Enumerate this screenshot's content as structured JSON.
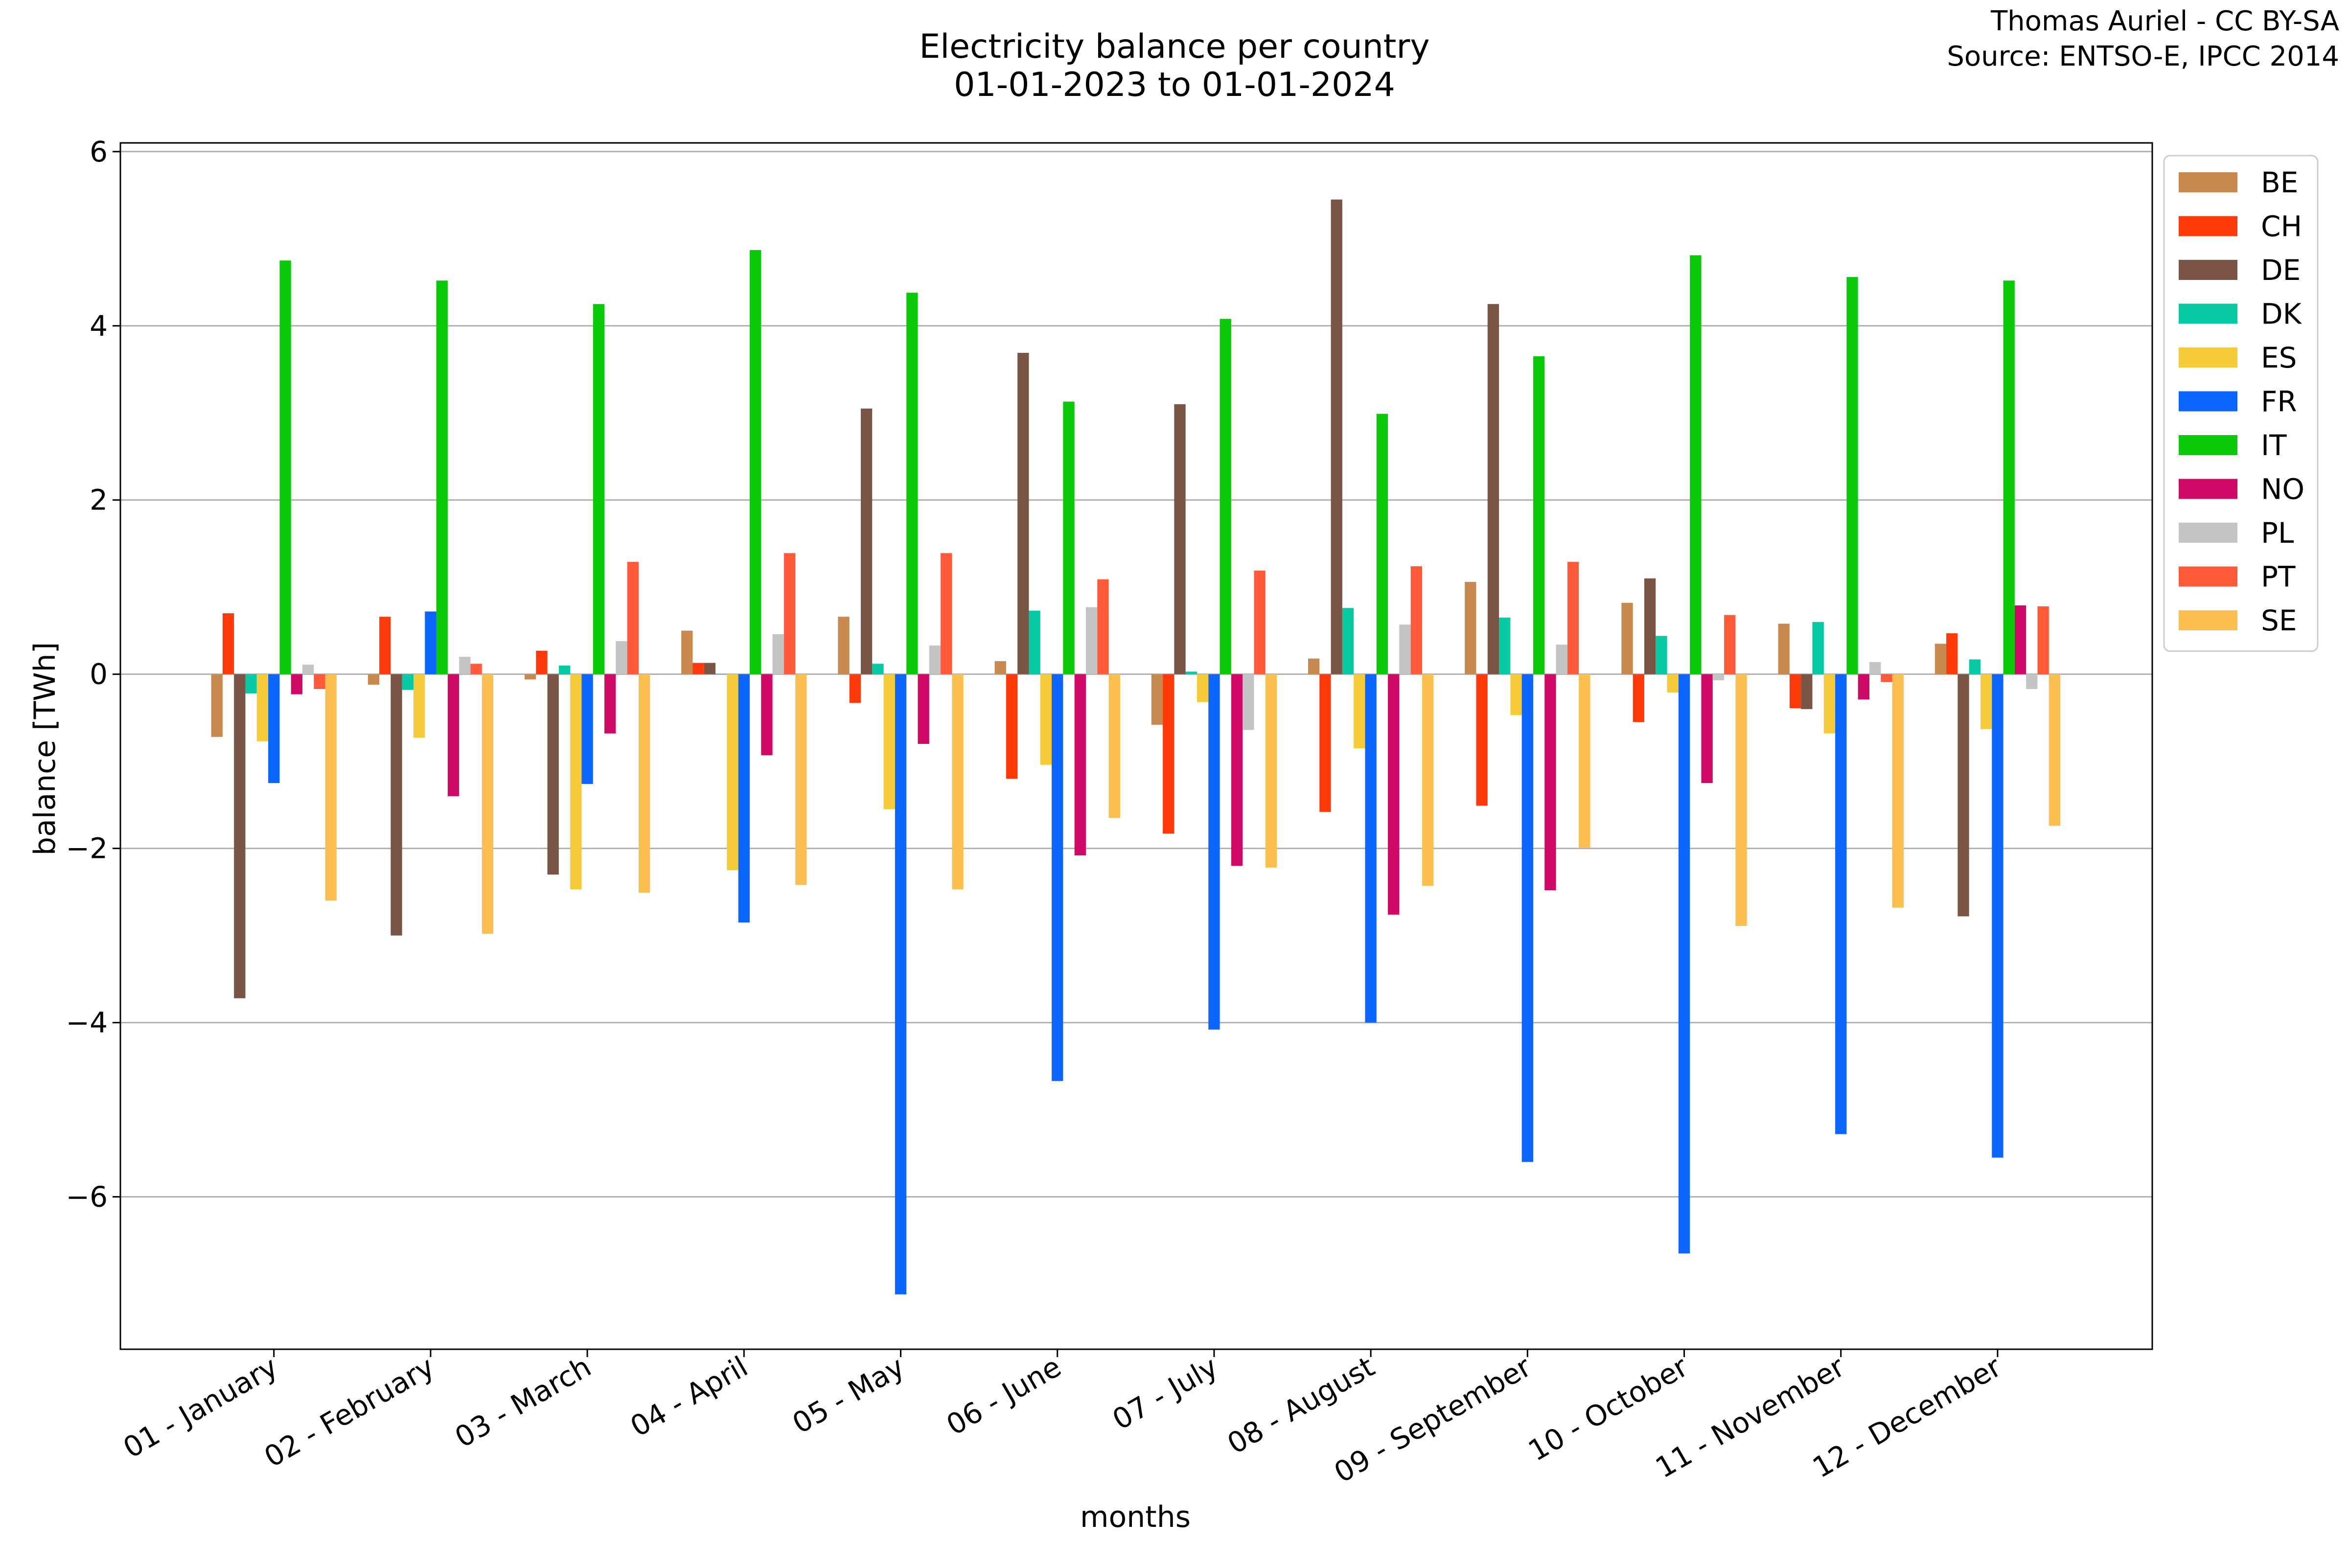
{
  "chart_data": {
    "type": "bar",
    "title": "Electricity balance per country",
    "subtitle": "01-01-2023 to 01-01-2024",
    "credit_line1": "Thomas Auriel - CC BY-SA",
    "credit_line2": "Source: ENTSO-E, IPCC 2014",
    "xlabel": "months",
    "ylabel": "balance [TWh]",
    "ylim": [
      -7.75,
      6.1
    ],
    "yticks": [
      6,
      4,
      2,
      0,
      -2,
      -4,
      -6
    ],
    "ytick_labels": [
      "6",
      "4",
      "2",
      "0",
      "−2",
      "−4",
      "−6"
    ],
    "grid": "horizontal",
    "legend_position": "top-right",
    "categories": [
      "01 - January",
      "02 - February",
      "03 - March",
      "04 - April",
      "05 - May",
      "06 - June",
      "07 - July",
      "08 - August",
      "09 - September",
      "10 - October",
      "11 - November",
      "12 - December"
    ],
    "series": [
      {
        "name": "BE",
        "color": "#c8894f",
        "values": [
          -0.72,
          -0.12,
          -0.06,
          0.5,
          0.66,
          0.15,
          -0.58,
          0.18,
          1.06,
          0.82,
          0.58,
          0.35
        ]
      },
      {
        "name": "CH",
        "color": "#ff3a0a",
        "values": [
          0.7,
          0.66,
          0.27,
          0.13,
          -0.33,
          -1.2,
          -1.83,
          -1.58,
          -1.51,
          -0.55,
          -0.39,
          0.47
        ]
      },
      {
        "name": "DE",
        "color": "#7a5444",
        "values": [
          -3.72,
          -3.0,
          -2.3,
          0.13,
          3.05,
          3.69,
          3.1,
          5.45,
          4.25,
          1.1,
          -0.4,
          -2.78
        ]
      },
      {
        "name": "DK",
        "color": "#07c9a4",
        "values": [
          -0.22,
          -0.18,
          0.1,
          0.0,
          0.12,
          0.73,
          0.03,
          0.76,
          0.65,
          0.44,
          0.6,
          0.17
        ]
      },
      {
        "name": "ES",
        "color": "#f5cb3a",
        "values": [
          -0.77,
          -0.73,
          -2.47,
          -2.25,
          -1.55,
          -1.04,
          -0.32,
          -0.85,
          -0.47,
          -0.21,
          -0.68,
          -0.63
        ]
      },
      {
        "name": "FR",
        "color": "#0a66ff",
        "values": [
          -1.25,
          0.72,
          -1.26,
          -2.85,
          -7.12,
          -4.67,
          -4.08,
          -4.0,
          -5.6,
          -6.65,
          -5.28,
          -5.55
        ]
      },
      {
        "name": "IT",
        "color": "#0ac90a",
        "values": [
          4.75,
          4.52,
          4.25,
          4.87,
          4.38,
          3.13,
          4.08,
          2.99,
          3.65,
          4.81,
          4.56,
          4.52
        ]
      },
      {
        "name": "NO",
        "color": "#cf0a66",
        "values": [
          -0.23,
          -1.4,
          -0.68,
          -0.93,
          -0.8,
          -2.08,
          -2.2,
          -2.76,
          -2.48,
          -1.25,
          -0.29,
          0.79
        ]
      },
      {
        "name": "PL",
        "color": "#c4c4c4",
        "values": [
          0.11,
          0.2,
          0.38,
          0.46,
          0.33,
          0.77,
          -0.64,
          0.57,
          0.34,
          -0.07,
          0.14,
          -0.17
        ]
      },
      {
        "name": "PT",
        "color": "#ff5a3a",
        "values": [
          -0.17,
          0.12,
          1.29,
          1.39,
          1.39,
          1.09,
          1.19,
          1.24,
          1.29,
          0.68,
          -0.09,
          0.78
        ]
      },
      {
        "name": "SE",
        "color": "#fbbf4f",
        "values": [
          -2.6,
          -2.98,
          -2.51,
          -2.42,
          -2.47,
          -1.65,
          -2.22,
          -2.43,
          -1.99,
          -2.89,
          -2.68,
          -1.74
        ]
      }
    ]
  }
}
